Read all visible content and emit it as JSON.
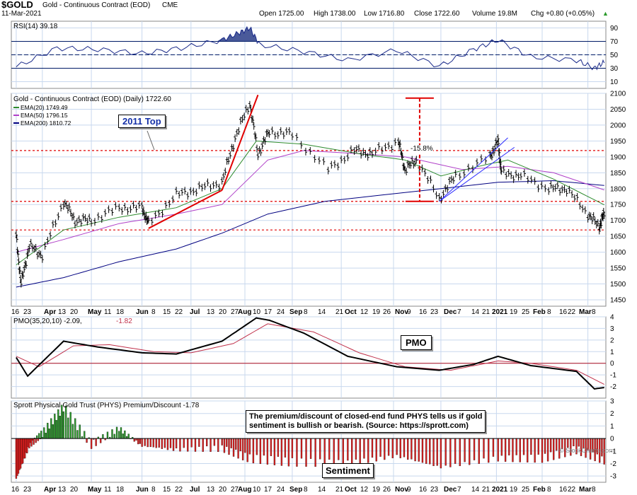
{
  "header": {
    "symbol": "$GOLD",
    "name": "Gold - Continuous Contract (EOD)",
    "exchange": "CME",
    "date": "11-Mar-2021",
    "open": "Open 1725.00",
    "high": "High 1738.00",
    "low": "Low 1716.80",
    "close": "Close 1722.60",
    "volume": "Volume 19.8M",
    "chg": "Chg +0.80 (+0.05%)",
    "chg_symbol": "▲",
    "copyright": "© StockCharts.com"
  },
  "annotations": {
    "top_2011": "2011 Top",
    "pmo_box": "PMO",
    "sentiment_box": "Sentiment",
    "phys_note_line1": "The premium/discount of closed-end fund PHYS tells us if gold",
    "phys_note_line2": "sentiment is bullish or bearish. (Source: https://sprott.com)",
    "pct_label": "-15.8%"
  },
  "colors": {
    "price": "#000000",
    "ema20": "#2e8b2e",
    "ema50": "#b040c8",
    "ema200": "#000080",
    "red_line": "#e00000",
    "rsi_fill": "#4a5a9a",
    "pmo_signal": "#c0304a",
    "phys_neg": "#e02020",
    "phys_pos": "#2a9a2a",
    "grid": "#c8d8ee"
  },
  "chart_data": [
    {
      "type": "line",
      "panel": "RSI",
      "title": "RSI(14) 39.18",
      "ylim": [
        0,
        100
      ],
      "yticks": [
        10,
        30,
        50,
        70,
        90
      ],
      "reference_lines": [
        30,
        50,
        70
      ],
      "x": [
        "2020-03-16",
        "2020-04-10",
        "2020-05-05",
        "2020-06-01",
        "2020-06-25",
        "2020-07-20",
        "2020-07-30",
        "2020-08-06",
        "2020-08-12",
        "2020-09-08",
        "2020-10-05",
        "2020-11-04",
        "2020-11-30",
        "2020-12-21",
        "2021-01-05",
        "2021-01-25",
        "2021-02-22",
        "2021-03-05",
        "2021-03-11"
      ],
      "values": [
        32,
        60,
        58,
        52,
        60,
        72,
        82,
        90,
        65,
        55,
        42,
        57,
        33,
        58,
        72,
        47,
        42,
        30,
        39
      ]
    },
    {
      "type": "line",
      "panel": "Price",
      "title": "Gold - Continuous Contract (EOD) (Daily) 1722.60",
      "ylim": [
        1430,
        2100
      ],
      "yticks": [
        1450,
        1500,
        1550,
        1600,
        1650,
        1700,
        1750,
        1800,
        1850,
        1900,
        1950,
        2000,
        2050,
        2100
      ],
      "xticks": [
        "16",
        "23",
        "Apr",
        "13",
        "20",
        "May",
        "11",
        "18",
        "Jun",
        "8",
        "15",
        "22",
        "Jul",
        "13",
        "20",
        "27",
        "Aug",
        "10",
        "17",
        "24",
        "Sep",
        "8",
        "14",
        "21",
        "Oct",
        "12",
        "19",
        "26",
        "Nov",
        "9",
        "16",
        "23",
        "Dec",
        "7",
        "14",
        "21",
        "2021",
        "19",
        "25",
        "Feb",
        "8",
        "16",
        "22",
        "Mar",
        "8"
      ],
      "series": [
        {
          "name": "Gold - Continuous Contract (EOD)",
          "x": [
            "2020-03-16",
            "2020-03-19",
            "2020-03-24",
            "2020-04-01",
            "2020-04-14",
            "2020-04-21",
            "2020-05-01",
            "2020-05-18",
            "2020-06-01",
            "2020-06-05",
            "2020-06-22",
            "2020-07-06",
            "2020-07-20",
            "2020-07-28",
            "2020-08-06",
            "2020-08-11",
            "2020-08-18",
            "2020-09-01",
            "2020-09-23",
            "2020-10-09",
            "2020-10-20",
            "2020-11-05",
            "2020-11-09",
            "2020-11-16",
            "2020-11-30",
            "2020-12-10",
            "2020-12-31",
            "2021-01-05",
            "2021-01-07",
            "2021-01-19",
            "2021-02-05",
            "2021-02-16",
            "2021-03-01",
            "2021-03-08",
            "2021-03-11"
          ],
          "values": [
            1650,
            1500,
            1620,
            1590,
            1760,
            1700,
            1700,
            1740,
            1740,
            1690,
            1780,
            1800,
            1820,
            1960,
            2070,
            1910,
            1980,
            1970,
            1860,
            1920,
            1910,
            1950,
            1860,
            1890,
            1770,
            1840,
            1900,
            1950,
            1850,
            1840,
            1800,
            1800,
            1720,
            1680,
            1722
          ]
        },
        {
          "name": "EMA(20) 1749.49",
          "x": [
            "2020-03-16",
            "2020-04-14",
            "2020-05-18",
            "2020-06-22",
            "2020-07-20",
            "2020-08-10",
            "2020-09-08",
            "2020-10-12",
            "2020-11-09",
            "2020-12-01",
            "2020-12-28",
            "2021-01-11",
            "2021-02-08",
            "2021-03-11"
          ],
          "values": [
            1560,
            1670,
            1710,
            1740,
            1800,
            1950,
            1940,
            1910,
            1890,
            1840,
            1875,
            1890,
            1830,
            1749
          ]
        },
        {
          "name": "EMA(50) 1796.15",
          "x": [
            "2020-03-16",
            "2020-04-14",
            "2020-05-18",
            "2020-06-22",
            "2020-07-20",
            "2020-08-17",
            "2020-09-08",
            "2020-10-12",
            "2020-11-09",
            "2020-12-14",
            "2021-01-11",
            "2021-02-08",
            "2021-03-11"
          ],
          "values": [
            1600,
            1640,
            1690,
            1720,
            1750,
            1890,
            1920,
            1910,
            1900,
            1860,
            1870,
            1850,
            1796
          ]
        },
        {
          "name": "EMA(200) 1810.72",
          "x": [
            "2020-03-16",
            "2020-04-14",
            "2020-05-18",
            "2020-06-22",
            "2020-07-20",
            "2020-08-17",
            "2020-09-21",
            "2020-10-26",
            "2020-12-01",
            "2021-01-05",
            "2021-02-08",
            "2021-03-11"
          ],
          "values": [
            1490,
            1520,
            1570,
            1610,
            1660,
            1720,
            1760,
            1780,
            1800,
            1820,
            1825,
            1810
          ]
        }
      ],
      "horizontal_lines": [
        1920,
        1760,
        1670
      ]
    },
    {
      "type": "line",
      "panel": "PMO",
      "title": "PMO(35,20,10) -2.09, -1.82",
      "ylim": [
        -3,
        4
      ],
      "yticks": [
        -2,
        -1,
        0,
        1,
        2,
        3,
        4
      ],
      "series": [
        {
          "name": "PMO",
          "x": [
            "2020-03-16",
            "2020-03-23",
            "2020-04-14",
            "2020-05-05",
            "2020-06-01",
            "2020-06-22",
            "2020-07-20",
            "2020-08-10",
            "2020-08-18",
            "2020-09-08",
            "2020-10-05",
            "2020-11-04",
            "2020-11-30",
            "2020-12-21",
            "2021-01-05",
            "2021-01-25",
            "2021-02-22",
            "2021-03-05",
            "2021-03-11"
          ],
          "values": [
            0.5,
            -1.1,
            1.9,
            1.4,
            0.9,
            0.8,
            1.9,
            3.9,
            3.7,
            2.6,
            0.6,
            -0.3,
            -0.6,
            -0.1,
            0.6,
            -0.2,
            -0.7,
            -2.2,
            -2.09
          ]
        },
        {
          "name": "Signal",
          "x": [
            "2020-03-16",
            "2020-03-30",
            "2020-04-20",
            "2020-05-12",
            "2020-06-08",
            "2020-07-01",
            "2020-07-27",
            "2020-08-17",
            "2020-09-14",
            "2020-10-12",
            "2020-11-09",
            "2020-12-07",
            "2021-01-05",
            "2021-01-25",
            "2021-02-22",
            "2021-03-11"
          ],
          "values": [
            0.6,
            -0.3,
            1.5,
            1.6,
            1.0,
            0.9,
            1.7,
            3.4,
            2.7,
            0.9,
            -0.3,
            -0.6,
            0.2,
            0.0,
            -0.6,
            -1.82
          ]
        }
      ]
    },
    {
      "type": "bar",
      "panel": "Sentiment",
      "title": "Sprott Physical Gold Trust (PHYS) Premium/Discount -1.78",
      "ylim": [
        -3.5,
        3
      ],
      "yticks": [
        -3,
        -2,
        -1,
        0,
        1,
        2,
        3
      ],
      "x": [
        "2020-03-16",
        "2020-03-24",
        "2020-04-01",
        "2020-04-14",
        "2020-05-01",
        "2020-05-18",
        "2020-06-01",
        "2020-06-22",
        "2020-07-20",
        "2020-08-06",
        "2020-09-01",
        "2020-10-05",
        "2020-11-04",
        "2020-12-01",
        "2021-01-05",
        "2021-02-01",
        "2021-02-22",
        "2021-03-11"
      ],
      "values": [
        -3.2,
        -0.6,
        0.4,
        2.5,
        -0.5,
        0.8,
        -0.6,
        -0.9,
        -0.8,
        -1.6,
        -1.9,
        -2.0,
        -1.4,
        -2.3,
        -1.6,
        -1.6,
        -0.9,
        -1.78
      ]
    }
  ]
}
